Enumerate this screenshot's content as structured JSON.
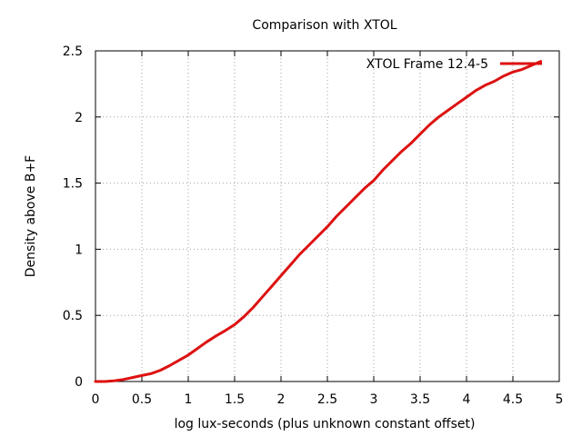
{
  "chart_data": {
    "type": "line",
    "title": "Comparison with XTOL",
    "xlabel": "log lux-seconds (plus unknown constant offset)",
    "ylabel": "Density above B+F",
    "xlim": [
      0,
      5
    ],
    "ylim": [
      0,
      2.5
    ],
    "xticks": [
      0,
      0.5,
      1,
      1.5,
      2,
      2.5,
      3,
      3.5,
      4,
      4.5,
      5
    ],
    "yticks": [
      0,
      0.5,
      1,
      1.5,
      2,
      2.5
    ],
    "xtick_labels": [
      "0",
      "0.5",
      "1",
      "1.5",
      "2",
      "2.5",
      "3",
      "3.5",
      "4",
      "4.5",
      "5"
    ],
    "ytick_labels": [
      "0",
      "0.5",
      "1",
      "1.5",
      "2",
      "2.5"
    ],
    "grid": true,
    "legend_position": "top-right",
    "series": [
      {
        "name": "XTOL Frame 12.4-5",
        "color": "#dd1111",
        "x": [
          0.0,
          0.1,
          0.2,
          0.3,
          0.4,
          0.5,
          0.6,
          0.7,
          0.8,
          0.9,
          1.0,
          1.1,
          1.2,
          1.3,
          1.4,
          1.5,
          1.6,
          1.7,
          1.8,
          1.9,
          2.0,
          2.1,
          2.2,
          2.3,
          2.4,
          2.5,
          2.6,
          2.7,
          2.8,
          2.9,
          3.0,
          3.1,
          3.2,
          3.3,
          3.4,
          3.5,
          3.6,
          3.7,
          3.8,
          3.9,
          4.0,
          4.1,
          4.2,
          4.3,
          4.4,
          4.5,
          4.6,
          4.7,
          4.8
        ],
        "y": [
          0.0,
          0.0,
          0.005,
          0.015,
          0.03,
          0.045,
          0.06,
          0.085,
          0.12,
          0.16,
          0.2,
          0.25,
          0.3,
          0.345,
          0.385,
          0.43,
          0.49,
          0.56,
          0.64,
          0.72,
          0.8,
          0.88,
          0.96,
          1.03,
          1.1,
          1.17,
          1.25,
          1.32,
          1.39,
          1.46,
          1.52,
          1.6,
          1.67,
          1.74,
          1.8,
          1.87,
          1.94,
          2.0,
          2.05,
          2.1,
          2.15,
          2.2,
          2.24,
          2.27,
          2.31,
          2.34,
          2.36,
          2.39,
          2.42
        ]
      }
    ]
  }
}
